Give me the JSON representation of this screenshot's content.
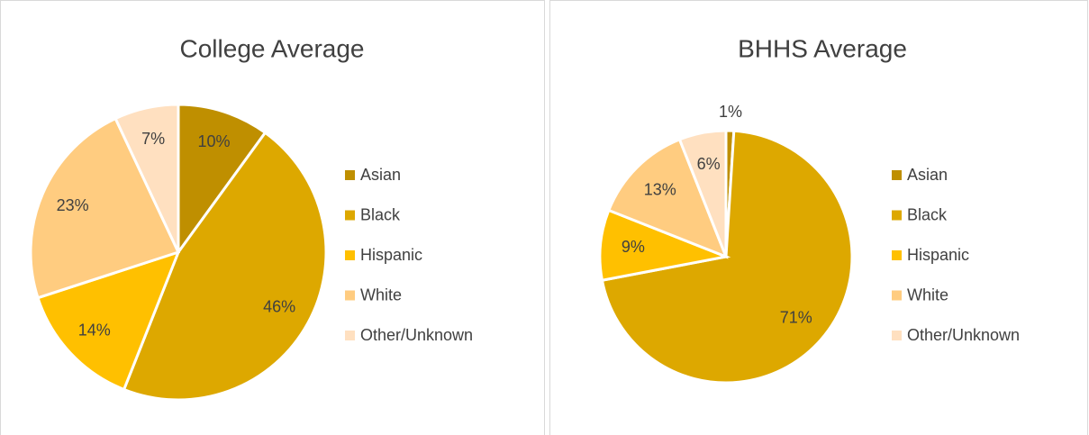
{
  "chart_data": [
    {
      "type": "pie",
      "title": "College Average",
      "categories": [
        "Asian",
        "Black",
        "Hispanic",
        "White",
        "Other/Unknown"
      ],
      "values": [
        10,
        46,
        14,
        23,
        7
      ],
      "value_labels": [
        "10%",
        "46%",
        "14%",
        "23%",
        "7%"
      ],
      "colors": [
        "#BF8F00",
        "#DDA800",
        "#FFC000",
        "#FFCC80",
        "#FFE0C0"
      ],
      "legend": "right"
    },
    {
      "type": "pie",
      "title": "BHHS Average",
      "categories": [
        "Asian",
        "Black",
        "Hispanic",
        "White",
        "Other/Unknown"
      ],
      "values": [
        1,
        71,
        9,
        13,
        6
      ],
      "value_labels": [
        "1%",
        "71%",
        "9%",
        "13%",
        "6%"
      ],
      "colors": [
        "#BF8F00",
        "#DDA800",
        "#FFC000",
        "#FFCC80",
        "#FFE0C0"
      ],
      "legend": "right"
    }
  ]
}
